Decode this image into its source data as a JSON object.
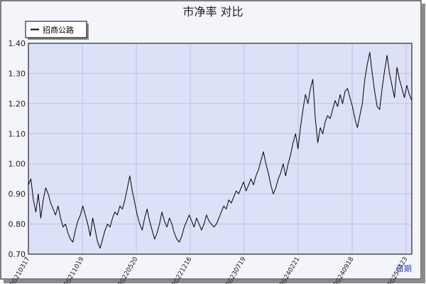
{
  "chart_data": {
    "type": "line",
    "title": "市净率  对比",
    "xlabel": "日期",
    "ylabel": "",
    "ylim": [
      0.7,
      1.4
    ],
    "yticks": [
      "0.70",
      "0.80",
      "0.90",
      "1.00",
      "1.10",
      "1.20",
      "1.30",
      "1.40"
    ],
    "xticks": [
      "20210317",
      "20211019",
      "20220520",
      "20221216",
      "20230719",
      "20240221",
      "20240918",
      "20250423"
    ],
    "grid": true,
    "legend": "top-left",
    "colors": {
      "plot_bg": "#dde1f7",
      "outer_bg": "#f4f4fb",
      "line": "#000000",
      "grid": "#b9c1e8"
    },
    "series": [
      {
        "name": "招商公路",
        "points": [
          [
            0,
            0.93
          ],
          [
            2,
            0.95
          ],
          [
            4,
            0.88
          ],
          [
            6,
            0.84
          ],
          [
            8,
            0.9
          ],
          [
            10,
            0.82
          ],
          [
            12,
            0.88
          ],
          [
            14,
            0.92
          ],
          [
            16,
            0.9
          ],
          [
            18,
            0.87
          ],
          [
            20,
            0.85
          ],
          [
            22,
            0.83
          ],
          [
            24,
            0.86
          ],
          [
            26,
            0.82
          ],
          [
            28,
            0.79
          ],
          [
            30,
            0.8
          ],
          [
            32,
            0.77
          ],
          [
            34,
            0.75
          ],
          [
            36,
            0.74
          ],
          [
            38,
            0.78
          ],
          [
            40,
            0.81
          ],
          [
            42,
            0.83
          ],
          [
            44,
            0.86
          ],
          [
            46,
            0.83
          ],
          [
            48,
            0.8
          ],
          [
            50,
            0.76
          ],
          [
            52,
            0.82
          ],
          [
            54,
            0.78
          ],
          [
            56,
            0.74
          ],
          [
            58,
            0.72
          ],
          [
            60,
            0.75
          ],
          [
            62,
            0.78
          ],
          [
            64,
            0.8
          ],
          [
            66,
            0.79
          ],
          [
            68,
            0.82
          ],
          [
            70,
            0.84
          ],
          [
            72,
            0.83
          ],
          [
            74,
            0.86
          ],
          [
            76,
            0.85
          ],
          [
            78,
            0.88
          ],
          [
            80,
            0.92
          ],
          [
            82,
            0.96
          ],
          [
            84,
            0.91
          ],
          [
            86,
            0.87
          ],
          [
            88,
            0.83
          ],
          [
            90,
            0.8
          ],
          [
            92,
            0.78
          ],
          [
            94,
            0.82
          ],
          [
            96,
            0.85
          ],
          [
            98,
            0.81
          ],
          [
            100,
            0.78
          ],
          [
            102,
            0.75
          ],
          [
            104,
            0.77
          ],
          [
            106,
            0.8
          ],
          [
            108,
            0.84
          ],
          [
            110,
            0.81
          ],
          [
            112,
            0.79
          ],
          [
            114,
            0.82
          ],
          [
            116,
            0.8
          ],
          [
            118,
            0.77
          ],
          [
            120,
            0.75
          ],
          [
            122,
            0.74
          ],
          [
            124,
            0.76
          ],
          [
            126,
            0.79
          ],
          [
            128,
            0.81
          ],
          [
            130,
            0.83
          ],
          [
            132,
            0.81
          ],
          [
            134,
            0.79
          ],
          [
            136,
            0.82
          ],
          [
            138,
            0.8
          ],
          [
            140,
            0.78
          ],
          [
            142,
            0.8
          ],
          [
            144,
            0.83
          ],
          [
            146,
            0.81
          ],
          [
            148,
            0.8
          ],
          [
            150,
            0.79
          ],
          [
            152,
            0.8
          ],
          [
            154,
            0.82
          ],
          [
            156,
            0.84
          ],
          [
            158,
            0.86
          ],
          [
            160,
            0.85
          ],
          [
            162,
            0.88
          ],
          [
            164,
            0.87
          ],
          [
            166,
            0.89
          ],
          [
            168,
            0.91
          ],
          [
            170,
            0.9
          ],
          [
            172,
            0.92
          ],
          [
            174,
            0.94
          ],
          [
            176,
            0.91
          ],
          [
            178,
            0.93
          ],
          [
            180,
            0.95
          ],
          [
            182,
            0.93
          ],
          [
            184,
            0.96
          ],
          [
            186,
            0.98
          ],
          [
            188,
            1.01
          ],
          [
            190,
            1.04
          ],
          [
            192,
            1.0
          ],
          [
            194,
            0.97
          ],
          [
            196,
            0.93
          ],
          [
            198,
            0.9
          ],
          [
            200,
            0.92
          ],
          [
            202,
            0.95
          ],
          [
            204,
            0.97
          ],
          [
            206,
            1.0
          ],
          [
            208,
            0.96
          ],
          [
            210,
            1.0
          ],
          [
            212,
            1.03
          ],
          [
            214,
            1.07
          ],
          [
            216,
            1.1
          ],
          [
            218,
            1.05
          ],
          [
            220,
            1.12
          ],
          [
            222,
            1.18
          ],
          [
            224,
            1.23
          ],
          [
            226,
            1.2
          ],
          [
            228,
            1.25
          ],
          [
            230,
            1.28
          ],
          [
            232,
            1.15
          ],
          [
            234,
            1.07
          ],
          [
            236,
            1.12
          ],
          [
            238,
            1.1
          ],
          [
            240,
            1.14
          ],
          [
            242,
            1.16
          ],
          [
            244,
            1.15
          ],
          [
            246,
            1.18
          ],
          [
            248,
            1.21
          ],
          [
            250,
            1.19
          ],
          [
            252,
            1.23
          ],
          [
            254,
            1.2
          ],
          [
            256,
            1.24
          ],
          [
            258,
            1.25
          ],
          [
            260,
            1.22
          ],
          [
            262,
            1.19
          ],
          [
            264,
            1.15
          ],
          [
            266,
            1.12
          ],
          [
            268,
            1.16
          ],
          [
            270,
            1.2
          ],
          [
            272,
            1.28
          ],
          [
            274,
            1.33
          ],
          [
            276,
            1.37
          ],
          [
            278,
            1.3
          ],
          [
            280,
            1.24
          ],
          [
            282,
            1.19
          ],
          [
            284,
            1.18
          ],
          [
            286,
            1.25
          ],
          [
            288,
            1.31
          ],
          [
            290,
            1.36
          ],
          [
            292,
            1.3
          ],
          [
            294,
            1.26
          ],
          [
            296,
            1.22
          ],
          [
            298,
            1.32
          ],
          [
            300,
            1.28
          ],
          [
            302,
            1.25
          ],
          [
            304,
            1.22
          ],
          [
            306,
            1.26
          ],
          [
            308,
            1.23
          ],
          [
            310,
            1.21
          ]
        ]
      }
    ]
  }
}
